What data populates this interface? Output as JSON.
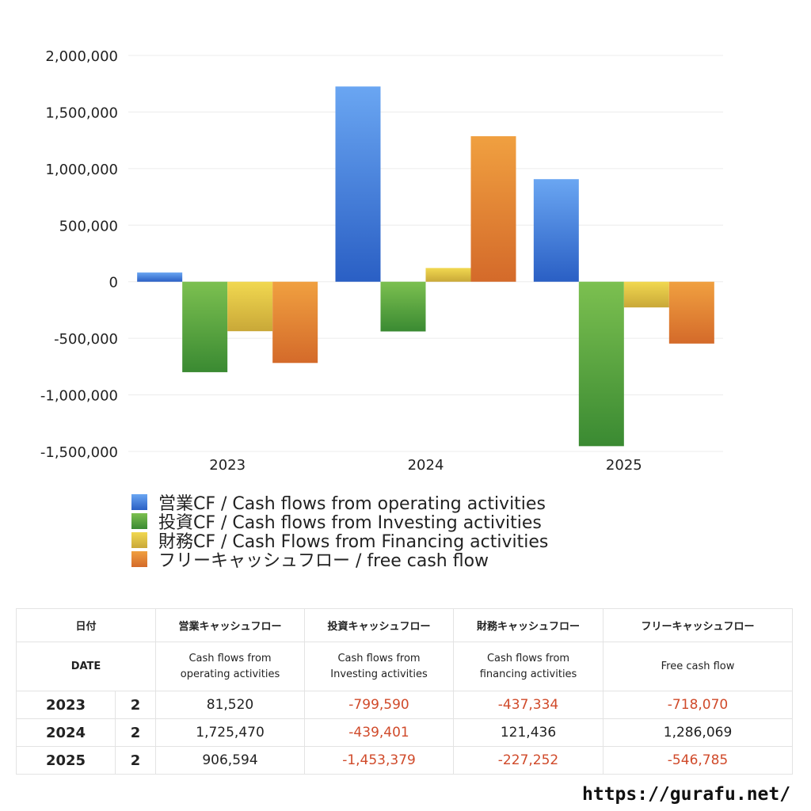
{
  "chart_data": {
    "type": "bar",
    "categories": [
      "2023",
      "2024",
      "2025"
    ],
    "series": [
      {
        "name": "営業CF / Cash flows from operating activities",
        "values": [
          81520,
          1725470,
          906594
        ],
        "color_top": "#6aa6f2",
        "color_bottom": "#2a5fc4"
      },
      {
        "name": "投資CF / Cash flows from Investing activities",
        "values": [
          -799590,
          -439401,
          -1453379
        ],
        "color_top": "#7cc050",
        "color_bottom": "#3a8a32"
      },
      {
        "name": "財務CF / Cash Flows from Financing activities",
        "values": [
          -437334,
          121436,
          -227252
        ],
        "color_top": "#f1d850",
        "color_bottom": "#c9a838"
      },
      {
        "name": "フリーキャッシュフロー / free cash flow",
        "values": [
          -718070,
          1286069,
          -546785
        ],
        "color_top": "#f0a040",
        "color_bottom": "#d46a2a"
      }
    ],
    "ylim": [
      -1500000,
      2000000
    ],
    "yticks": [
      2000000,
      1500000,
      1000000,
      500000,
      0,
      -500000,
      -1000000,
      -1500000
    ],
    "ytick_labels": [
      "2,000,000",
      "1,500,000",
      "1,000,000",
      "500,000",
      "0",
      "-500,000",
      "-1,000,000",
      "-1,500,000"
    ],
    "grid": true,
    "legend_position": "bottom-left"
  },
  "table": {
    "headers_jp": [
      "日付",
      "",
      "営業キャッシュフロー",
      "投資キャッシュフロー",
      "財務キャッシュフロー",
      "フリーキャッシュフロー"
    ],
    "headers_en": [
      "DATE",
      "",
      "Cash flows from\noperating activities",
      "Cash flows from\nInvesting activities",
      "Cash flows from\nfinancing activities",
      "Free cash flow"
    ],
    "rows": [
      {
        "year": "2023",
        "month": "2",
        "operating": "81,520",
        "investing": "-799,590",
        "financing": "-437,334",
        "free": "-718,070"
      },
      {
        "year": "2024",
        "month": "2",
        "operating": "1,725,470",
        "investing": "-439,401",
        "financing": "121,436",
        "free": "1,286,069"
      },
      {
        "year": "2025",
        "month": "2",
        "operating": "906,594",
        "investing": "-1,453,379",
        "financing": "-227,252",
        "free": "-546,785"
      }
    ],
    "negative_color": "#d04a2a"
  },
  "footer_url": "https://gurafu.net/"
}
